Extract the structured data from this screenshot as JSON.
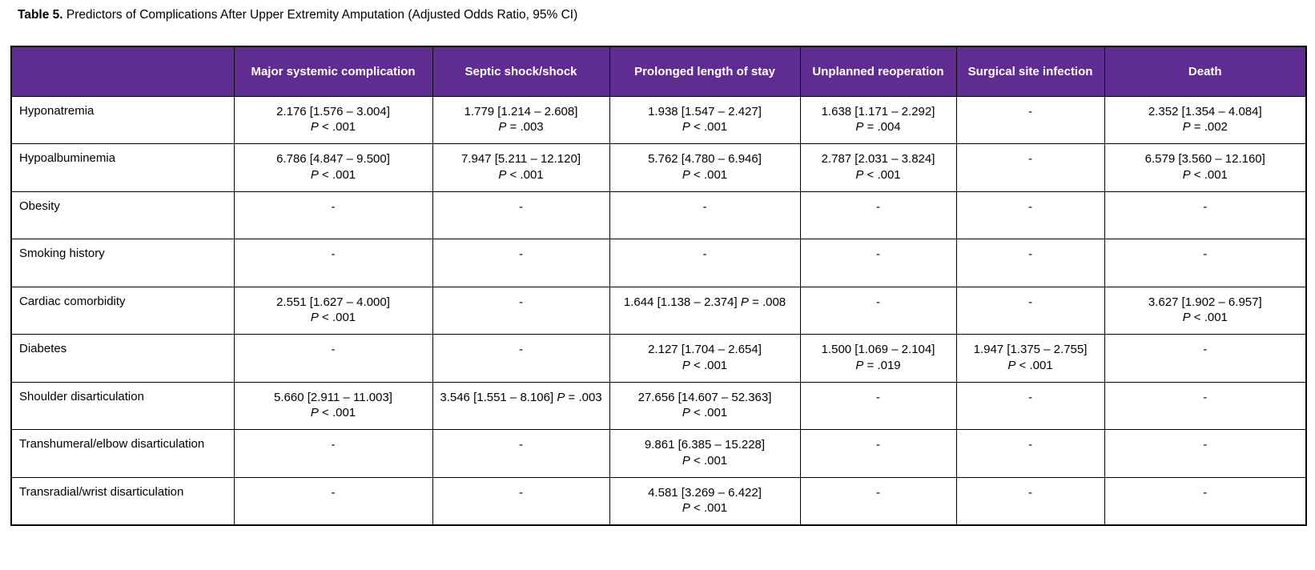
{
  "caption": {
    "label": "Table 5.",
    "text": "Predictors of Complications After Upper Extremity Amputation (Adjusted Odds Ratio, 95% CI)"
  },
  "table": {
    "header_bg_color": "#5F2D91",
    "header_text_color": "#FFFFFF",
    "empty_cell_marker": "-",
    "columns": [
      "",
      "Major systemic complication",
      "Septic shock/shock",
      "Prolonged length of stay",
      "Unplanned reoperation",
      "Surgical site infection",
      "Death"
    ],
    "rows": [
      {
        "label": "Hyponatremia",
        "cells": [
          {
            "value": "2.176 [1.576 – 3.004]",
            "p": "P < .001"
          },
          {
            "value": "1.779 [1.214 – 2.608]",
            "p": "P = .003"
          },
          {
            "value": "1.938 [1.547 – 2.427]",
            "p": "P < .001"
          },
          {
            "value": "1.638 [1.171 – 2.292]",
            "p": "P = .004"
          },
          {
            "value": "-"
          },
          {
            "value": "2.352 [1.354 – 4.084]",
            "p": "P = .002"
          }
        ]
      },
      {
        "label": "Hypoalbuminemia",
        "cells": [
          {
            "value": "6.786 [4.847 – 9.500]",
            "p": "P < .001"
          },
          {
            "value": "7.947 [5.211 – 12.120]",
            "p": "P < .001"
          },
          {
            "value": "5.762 [4.780 – 6.946]",
            "p": "P < .001"
          },
          {
            "value": "2.787 [2.031 – 3.824]",
            "p": "P < .001"
          },
          {
            "value": "-"
          },
          {
            "value": "6.579 [3.560 – 12.160]",
            "p": "P < .001"
          }
        ]
      },
      {
        "label": "Obesity",
        "cells": [
          {
            "value": "-"
          },
          {
            "value": "-"
          },
          {
            "value": "-"
          },
          {
            "value": "-"
          },
          {
            "value": "-"
          },
          {
            "value": "-"
          }
        ]
      },
      {
        "label": "Smoking history",
        "cells": [
          {
            "value": "-"
          },
          {
            "value": "-"
          },
          {
            "value": "-"
          },
          {
            "value": "-"
          },
          {
            "value": "-"
          },
          {
            "value": "-"
          }
        ]
      },
      {
        "label": "Cardiac comorbidity",
        "cells": [
          {
            "value": "2.551 [1.627 – 4.000]",
            "p": "P < .001"
          },
          {
            "value": "-"
          },
          {
            "value": "1.644 [1.138 – 2.374]",
            "p": "P = .008",
            "p_inline": true
          },
          {
            "value": "-"
          },
          {
            "value": "-"
          },
          {
            "value": "3.627 [1.902 – 6.957]",
            "p": "P < .001"
          }
        ]
      },
      {
        "label": "Diabetes",
        "cells": [
          {
            "value": "-"
          },
          {
            "value": "-"
          },
          {
            "value": "2.127 [1.704 – 2.654]",
            "p": "P < .001"
          },
          {
            "value": "1.500 [1.069 – 2.104]",
            "p": "P = .019"
          },
          {
            "value": "1.947 [1.375 – 2.755]",
            "p": "P < .001"
          },
          {
            "value": "-"
          }
        ]
      },
      {
        "label": "Shoulder disarticulation",
        "cells": [
          {
            "value": "5.660 [2.911 – 11.003]",
            "p": "P < .001"
          },
          {
            "value": "3.546 [1.551 – 8.106]",
            "p": "P = .003",
            "p_inline": true
          },
          {
            "value": "27.656 [14.607 – 52.363]",
            "p": "P < .001"
          },
          {
            "value": "-"
          },
          {
            "value": "-"
          },
          {
            "value": "-"
          }
        ]
      },
      {
        "label": "Transhumeral/elbow disarticulation",
        "cells": [
          {
            "value": "-"
          },
          {
            "value": "-"
          },
          {
            "value": "9.861 [6.385 – 15.228]",
            "p": "P < .001"
          },
          {
            "value": "-"
          },
          {
            "value": "-"
          },
          {
            "value": "-"
          }
        ]
      },
      {
        "label": "Transradial/wrist disarticulation",
        "cells": [
          {
            "value": "-"
          },
          {
            "value": "-"
          },
          {
            "value": "4.581 [3.269 – 6.422]",
            "p": "P < .001"
          },
          {
            "value": "-"
          },
          {
            "value": "-"
          },
          {
            "value": "-"
          }
        ]
      }
    ]
  }
}
